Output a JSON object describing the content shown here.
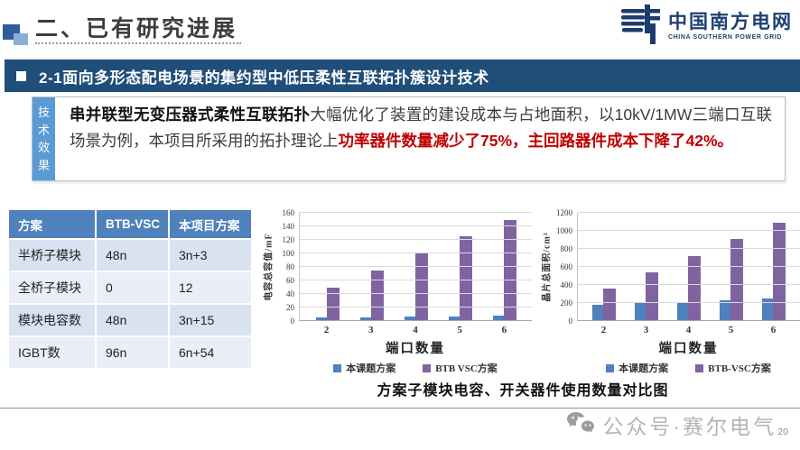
{
  "header": {
    "title": "二、已有研究进展",
    "logo": {
      "name_cn": "中国南方电网",
      "name_en": "CHINA SOUTHERN POWER GRID"
    }
  },
  "section": {
    "title": "2-1面向多形态配电场景的集约型中低压柔性互联拓扑簇设计技术"
  },
  "effect": {
    "label": "技术效果",
    "intro_bold": "串并联型无变压器式柔性互联拓扑",
    "body": "大幅优化了装置的建设成本与占地面积，以10kV/1MW三端口互联场景为例，本项目所采用的拓扑理论上",
    "highlight_red": "功率器件数量减少了75%，主回路器件成本下降了42%。"
  },
  "comparison_table": {
    "headers": [
      "方案",
      "BTB-VSC",
      "本项目方案"
    ],
    "rows": [
      [
        "半桥子模块",
        "48n",
        "3n+3"
      ],
      [
        "全桥子模块",
        "0",
        "12"
      ],
      [
        "模块电容数",
        "48n",
        "3n+15"
      ],
      [
        "IGBT数",
        "96n",
        "6n+54"
      ]
    ]
  },
  "chart_data": [
    {
      "type": "bar",
      "categories": [
        "2",
        "3",
        "4",
        "5",
        "6"
      ],
      "series": [
        {
          "name": "本课题方案",
          "color": "#4f81bd",
          "values": [
            6,
            6,
            7,
            7,
            8
          ]
        },
        {
          "name": "BTB VSC方案",
          "color": "#8064a2",
          "values": [
            50,
            75,
            100,
            125,
            150
          ]
        }
      ],
      "xlabel": "端口数量",
      "ylabel": "电容总容值/mF",
      "ylim": [
        0,
        160
      ],
      "ytick_step": 20,
      "grid": true,
      "legend_position": "bottom"
    },
    {
      "type": "bar",
      "categories": [
        "2",
        "3",
        "4",
        "5",
        "6"
      ],
      "series": [
        {
          "name": "本课题方案",
          "color": "#4f81bd",
          "values": [
            185,
            200,
            215,
            235,
            250
          ]
        },
        {
          "name": "BTB-VSC方案",
          "color": "#8064a2",
          "values": [
            360,
            545,
            725,
            910,
            1090
          ]
        }
      ],
      "xlabel": "端口数量",
      "ylabel": "晶片总面积/cm²",
      "ylim": [
        0,
        1200
      ],
      "ytick_step": 200,
      "grid": true,
      "legend_position": "bottom"
    }
  ],
  "caption": "方案子模块电容、开关器件使用数量对比图",
  "footer": {
    "wechat_label": "公众号·赛尔电气",
    "page_number": "20"
  },
  "colors": {
    "band_blue": "#1f4e79",
    "label_blue": "#5b9bd5",
    "table_header_blue": "#4f81bd",
    "series_blue": "#4f81bd",
    "series_purple": "#8064a2",
    "highlight_red": "#c00000"
  }
}
